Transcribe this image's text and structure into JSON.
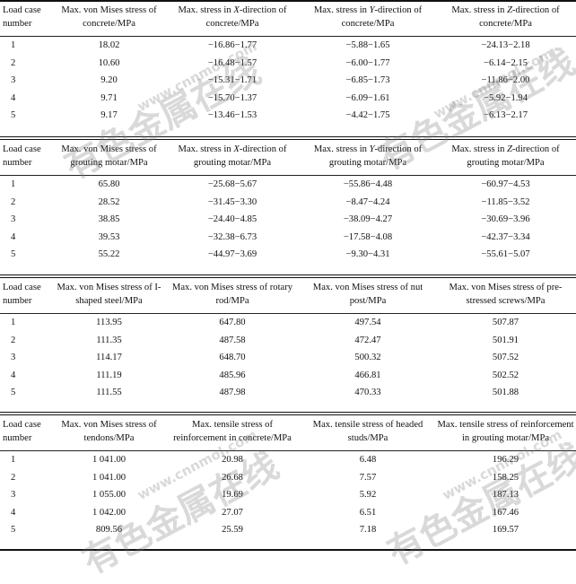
{
  "watermark": {
    "text_cn": "有色金属在线",
    "text_url": "www.cnnmol.com"
  },
  "tables": [
    {
      "headers": [
        "Load case number",
        "Max. von Mises stress of concrete/MPa",
        "Max. stress in X-direction of concrete/MPa",
        "Max. stress in Y-direction of concrete/MPa",
        "Max. stress in Z-direction of concrete/MPa"
      ],
      "rows": [
        [
          "1",
          "18.02",
          "−16.86−1.77",
          "−5.88−1.65",
          "−24.13−2.18"
        ],
        [
          "2",
          "10.60",
          "−16.48−1.57",
          "−6.00−1.77",
          "−6.14−2.15"
        ],
        [
          "3",
          "9.20",
          "−15.31−1.71",
          "−6.85−1.73",
          "−11.86−2.00"
        ],
        [
          "4",
          "9.71",
          "−15.70−1.37",
          "−6.09−1.61",
          "−5.92−1.94"
        ],
        [
          "5",
          "9.17",
          "−13.46−1.53",
          "−4.42−1.75",
          "−6.13−2.17"
        ]
      ]
    },
    {
      "headers": [
        "Load case number",
        "Max. von Mises stress of grouting motar/MPa",
        "Max. stress in X-direction of grouting motar/MPa",
        "Max. stress in Y-direction of grouting motar/MPa",
        "Max. stress in Z-direction of grouting motar/MPa"
      ],
      "rows": [
        [
          "1",
          "65.80",
          "−25.68−5.67",
          "−55.86−4.48",
          "−60.97−4.53"
        ],
        [
          "2",
          "28.52",
          "−31.45−3.30",
          "−8.47−4.24",
          "−11.85−3.52"
        ],
        [
          "3",
          "38.85",
          "−24.40−4.85",
          "−38.09−4.27",
          "−30.69−3.96"
        ],
        [
          "4",
          "39.53",
          "−32.38−6.73",
          "−17.58−4.08",
          "−42.37−3.34"
        ],
        [
          "5",
          "55.22",
          "−44.97−3.69",
          "−9.30−4.31",
          "−55.61−5.07"
        ]
      ]
    },
    {
      "headers": [
        "Load case number",
        "Max. von Mises stress of I-shaped steel/MPa",
        "Max. von Mises stress of rotary rod/MPa",
        "Max. von Mises stress of nut post/MPa",
        "Max. von Mises stress of pre-stressed screws/MPa"
      ],
      "rows": [
        [
          "1",
          "113.95",
          "647.80",
          "497.54",
          "507.87"
        ],
        [
          "2",
          "111.35",
          "487.58",
          "472.47",
          "501.91"
        ],
        [
          "3",
          "114.17",
          "648.70",
          "500.32",
          "507.52"
        ],
        [
          "4",
          "111.19",
          "485.96",
          "466.81",
          "502.52"
        ],
        [
          "5",
          "111.55",
          "487.98",
          "470.33",
          "501.88"
        ]
      ]
    },
    {
      "headers": [
        "Load case number",
        "Max. von Mises stress of tendons/MPa",
        "Max. tensile stress of reinforcement in concrete/MPa",
        "Max. tensile stress of headed studs/MPa",
        "Max. tensile stress of reinforcement in grouting motar/MPa"
      ],
      "rows": [
        [
          "1",
          "1 041.00",
          "20.98",
          "6.48",
          "196.29"
        ],
        [
          "2",
          "1 041.00",
          "26.68",
          "7.57",
          "158.25"
        ],
        [
          "3",
          "1 055.00",
          "19.69",
          "5.92",
          "187.13"
        ],
        [
          "4",
          "1 042.00",
          "27.07",
          "6.51",
          "167.46"
        ],
        [
          "5",
          "809.56",
          "25.59",
          "7.18",
          "169.57"
        ]
      ]
    }
  ]
}
